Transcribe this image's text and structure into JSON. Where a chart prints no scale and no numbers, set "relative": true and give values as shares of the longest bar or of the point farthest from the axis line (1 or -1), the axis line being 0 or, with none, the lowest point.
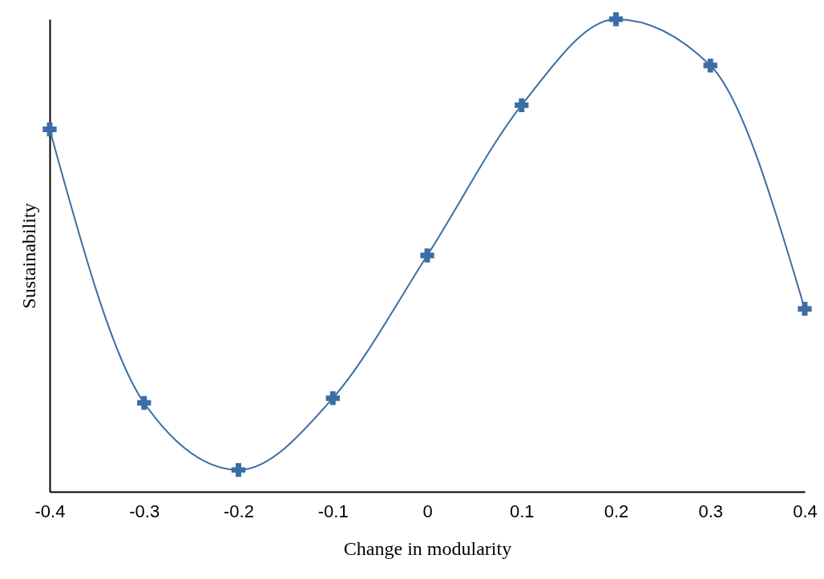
{
  "chart_data": {
    "type": "line",
    "relative": true,
    "xlabel": "Change in modularity",
    "ylabel": "Sustainability",
    "x": [
      -0.4,
      -0.3,
      -0.2,
      -0.1,
      0,
      0.1,
      0.2,
      0.3,
      0.4
    ],
    "xlim": [
      -0.4,
      0.4
    ],
    "xticks": [
      -0.4,
      -0.3,
      -0.2,
      -0.1,
      0,
      0.1,
      0.2,
      0.3,
      0.4
    ],
    "series": [
      {
        "color": "#3b6ea5",
        "values": [
          0.767,
          0.188,
          0.046,
          0.198,
          0.5,
          0.818,
          1,
          0.902,
          0.387
        ]
      }
    ],
    "marker": "cross",
    "line_style": "solid",
    "grid": false
  }
}
